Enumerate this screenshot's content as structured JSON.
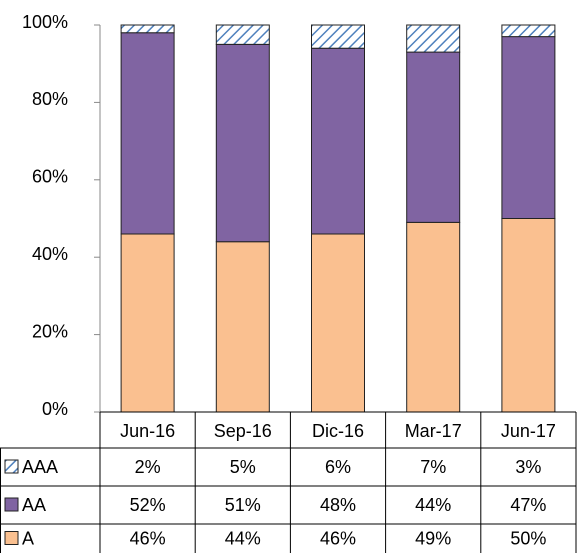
{
  "chart_data": {
    "type": "stacked-bar",
    "categories": [
      "Jun-16",
      "Sep-16",
      "Dic-16",
      "Mar-17",
      "Jun-17"
    ],
    "series": [
      {
        "name": "A",
        "color": "#fac090",
        "values": [
          46,
          44,
          46,
          49,
          50
        ],
        "value_labels": [
          "46%",
          "44%",
          "46%",
          "49%",
          "50%"
        ]
      },
      {
        "name": "AA",
        "color": "#8064a2",
        "values": [
          52,
          51,
          48,
          44,
          47
        ],
        "value_labels": [
          "52%",
          "51%",
          "48%",
          "44%",
          "47%"
        ]
      },
      {
        "name": "AAA",
        "color": "#4f81bd",
        "pattern": "hatch",
        "values": [
          2,
          5,
          6,
          7,
          3
        ],
        "value_labels": [
          "2%",
          "5%",
          "6%",
          "7%",
          "3%"
        ]
      }
    ],
    "ylim": [
      0,
      100
    ],
    "yticks": [
      {
        "value": 0,
        "label": "0%"
      },
      {
        "value": 20,
        "label": "20%"
      },
      {
        "value": 40,
        "label": "40%"
      },
      {
        "value": 60,
        "label": "60%"
      },
      {
        "value": 80,
        "label": "80%"
      },
      {
        "value": 100,
        "label": "100%"
      }
    ],
    "grid": false
  }
}
